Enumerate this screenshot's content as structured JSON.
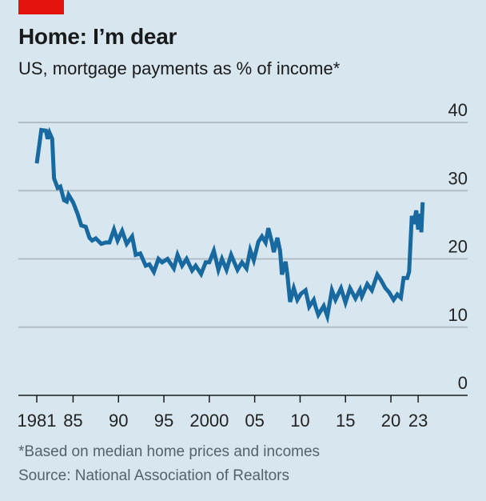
{
  "header": {
    "title": "Home: I’m dear",
    "subtitle": "US, mortgage payments as % of income*"
  },
  "footer": {
    "note": "*Based on median home prices and incomes",
    "source": "Source: National Association of Realtors"
  },
  "colors": {
    "background": "#d7e6ef",
    "line": "#1769a0",
    "accent": "#e3120b",
    "grid": "#b3bec4"
  },
  "chart_data": {
    "type": "line",
    "title": "Home: I’m dear",
    "subtitle": "US, mortgage payments as % of income*",
    "xlabel": "",
    "ylabel": "",
    "xlim": [
      1981,
      2023.5
    ],
    "ylim": [
      0,
      40
    ],
    "grid": true,
    "y_ticks": [
      0,
      10,
      20,
      30,
      40
    ],
    "y_tick_labels": [
      "0",
      "10",
      "20",
      "30",
      "40"
    ],
    "x_ticks": [
      1981,
      1985,
      1990,
      1995,
      2000,
      2005,
      2010,
      2015,
      2020,
      2023
    ],
    "x_tick_labels": [
      "1981",
      "85",
      "90",
      "95",
      "2000",
      "05",
      "10",
      "15",
      "20",
      "23"
    ],
    "series": [
      {
        "name": "Mortgage payments as % of income",
        "points": [
          [
            1981.0,
            34.0
          ],
          [
            1981.5,
            38.9
          ],
          [
            1982.0,
            38.8
          ],
          [
            1982.2,
            37.6
          ],
          [
            1982.4,
            38.5
          ],
          [
            1982.7,
            37.6
          ],
          [
            1982.9,
            31.8
          ],
          [
            1983.3,
            30.4
          ],
          [
            1983.6,
            30.6
          ],
          [
            1984.0,
            28.6
          ],
          [
            1984.3,
            28.4
          ],
          [
            1984.5,
            29.4
          ],
          [
            1985.0,
            28.3
          ],
          [
            1985.5,
            26.6
          ],
          [
            1985.9,
            24.9
          ],
          [
            1986.4,
            24.7
          ],
          [
            1986.8,
            23.1
          ],
          [
            1987.1,
            22.7
          ],
          [
            1987.5,
            23.0
          ],
          [
            1988.1,
            22.2
          ],
          [
            1988.6,
            22.4
          ],
          [
            1989.0,
            22.4
          ],
          [
            1989.5,
            24.3
          ],
          [
            1989.9,
            22.7
          ],
          [
            1990.4,
            24.1
          ],
          [
            1990.9,
            22.2
          ],
          [
            1991.5,
            23.3
          ],
          [
            1991.9,
            20.6
          ],
          [
            1992.4,
            20.8
          ],
          [
            1993.0,
            19.0
          ],
          [
            1993.4,
            19.2
          ],
          [
            1993.9,
            18.1
          ],
          [
            1994.4,
            20.0
          ],
          [
            1994.8,
            19.5
          ],
          [
            1995.4,
            20.0
          ],
          [
            1996.1,
            18.6
          ],
          [
            1996.5,
            20.6
          ],
          [
            1997.0,
            19.0
          ],
          [
            1997.5,
            20.0
          ],
          [
            1998.1,
            18.3
          ],
          [
            1998.5,
            19.0
          ],
          [
            1999.1,
            17.8
          ],
          [
            1999.6,
            19.5
          ],
          [
            2000.0,
            19.5
          ],
          [
            2000.5,
            21.2
          ],
          [
            2001.0,
            18.4
          ],
          [
            2001.4,
            20.0
          ],
          [
            2001.9,
            18.4
          ],
          [
            2002.4,
            20.6
          ],
          [
            2003.1,
            18.4
          ],
          [
            2003.6,
            19.5
          ],
          [
            2004.1,
            18.6
          ],
          [
            2004.5,
            21.3
          ],
          [
            2004.9,
            19.8
          ],
          [
            2005.4,
            22.5
          ],
          [
            2005.8,
            23.3
          ],
          [
            2006.2,
            22.4
          ],
          [
            2006.5,
            24.5
          ],
          [
            2006.9,
            22.4
          ],
          [
            2007.1,
            21.0
          ],
          [
            2007.5,
            23.1
          ],
          [
            2007.8,
            21.2
          ],
          [
            2008.0,
            17.7
          ],
          [
            2008.4,
            19.6
          ],
          [
            2008.6,
            17.7
          ],
          [
            2008.9,
            13.7
          ],
          [
            2009.3,
            15.7
          ],
          [
            2009.7,
            14.0
          ],
          [
            2010.1,
            14.9
          ],
          [
            2010.6,
            15.4
          ],
          [
            2011.0,
            13.0
          ],
          [
            2011.5,
            14.0
          ],
          [
            2011.7,
            13.0
          ],
          [
            2012.0,
            11.8
          ],
          [
            2012.6,
            13.1
          ],
          [
            2013.0,
            11.6
          ],
          [
            2013.5,
            15.4
          ],
          [
            2013.9,
            14.0
          ],
          [
            2014.5,
            15.7
          ],
          [
            2015.0,
            13.6
          ],
          [
            2015.5,
            15.7
          ],
          [
            2016.1,
            14.2
          ],
          [
            2016.6,
            15.5
          ],
          [
            2016.8,
            14.5
          ],
          [
            2017.4,
            16.3
          ],
          [
            2017.9,
            15.4
          ],
          [
            2018.5,
            17.7
          ],
          [
            2018.9,
            16.9
          ],
          [
            2019.4,
            15.7
          ],
          [
            2019.8,
            15.1
          ],
          [
            2020.3,
            14.0
          ],
          [
            2020.7,
            14.8
          ],
          [
            2021.1,
            14.3
          ],
          [
            2021.4,
            17.2
          ],
          [
            2021.8,
            17.2
          ],
          [
            2022.0,
            18.1
          ],
          [
            2022.3,
            26.3
          ],
          [
            2022.5,
            25.1
          ],
          [
            2022.8,
            27.1
          ],
          [
            2023.0,
            24.3
          ],
          [
            2023.3,
            26.6
          ],
          [
            2023.35,
            23.9
          ],
          [
            2023.5,
            28.3
          ]
        ]
      }
    ]
  }
}
